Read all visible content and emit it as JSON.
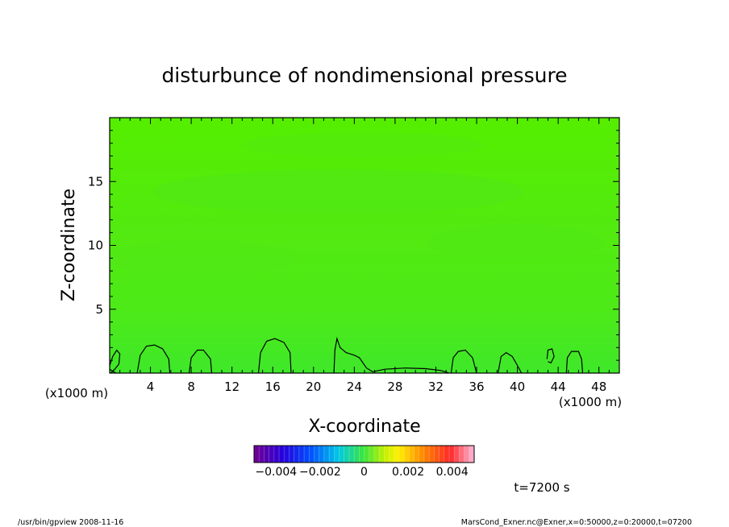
{
  "chart_data": {
    "type": "heatmap",
    "title": "disturbunce of nondimensional pressure",
    "xlabel": "X-coordinate",
    "ylabel": "Z-coordinate",
    "x_unit": "(x1000 m)",
    "x_unit_right": "(x1000 m)",
    "xlim": [
      0,
      50
    ],
    "ylim": [
      0,
      20
    ],
    "x_ticks": [
      4,
      8,
      12,
      16,
      20,
      24,
      28,
      32,
      36,
      40,
      44,
      48
    ],
    "y_ticks": [
      5,
      10,
      15
    ],
    "colorbar": {
      "range": [
        -0.005,
        0.005
      ],
      "tick_values": [
        -0.004,
        -0.002,
        0,
        0.002,
        0.004
      ],
      "tick_labels": [
        "−0.004",
        "−0.002",
        "0",
        "0.002",
        "0.004"
      ]
    },
    "field_summary": "near-zero disturbance everywhere; small positive pockets near the surface (z < 3)",
    "zero_contour_blobs": [
      {
        "x_center": 0.5,
        "top": 1.8
      },
      {
        "x_center": 4.2,
        "top": 2.2
      },
      {
        "x_center": 8.8,
        "top": 1.8
      },
      {
        "x_center": 16.2,
        "top": 2.7
      },
      {
        "x_center": 22.2,
        "top": 2.7
      },
      {
        "x_center": 34.5,
        "top": 1.8
      },
      {
        "x_center": 39.0,
        "top": 1.6
      },
      {
        "x_center": 43.3,
        "top": 1.9
      },
      {
        "x_center": 45.7,
        "top": 1.7
      }
    ]
  },
  "annotations": {
    "time": "t=7200 s",
    "footer_left": "/usr/bin/gpview   2008-11-16",
    "footer_right": "MarsCond_Exner.nc@Exner,x=0:50000,z=0:20000,t=07200"
  },
  "colors": {
    "field_base": "#55ee00",
    "field_light": "#50e818",
    "field_surface": "#3fe82a",
    "contour": "#000000"
  }
}
